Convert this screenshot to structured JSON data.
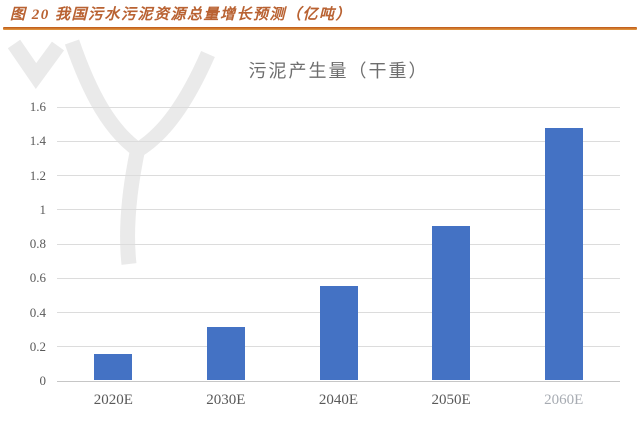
{
  "header": {
    "figure_label": "图 20  我国污水污泥资源总量增长预测（亿吨）"
  },
  "colors": {
    "bar": "#4472C4",
    "grid": "#DCDCDC",
    "baseline": "#C6C6C6",
    "axis_text": "#595959",
    "title_text": "#6E6E6E",
    "header_text": "#B96232",
    "rule_top": "#BC5716",
    "rule_bottom": "#E49B45",
    "watermark": "#EAEAEA",
    "page_bg": "#FFFFFF"
  },
  "chart_data": {
    "type": "bar",
    "title": "污泥产生量（干重）",
    "categories": [
      "2020E",
      "2030E",
      "2040E",
      "2050E",
      "2060E"
    ],
    "values": [
      0.15,
      0.31,
      0.55,
      0.9,
      1.47
    ],
    "xlabel": "",
    "ylabel": "",
    "ylim": [
      0,
      1.6
    ],
    "y_ticks": [
      "0",
      "0.2",
      "0.4",
      "0.6",
      "0.8",
      "1",
      "1.2",
      "1.4",
      "1.6"
    ],
    "grid": "horizontal",
    "legend_position": "none",
    "bar_color": "#4472C4",
    "unit_note": "亿吨"
  }
}
